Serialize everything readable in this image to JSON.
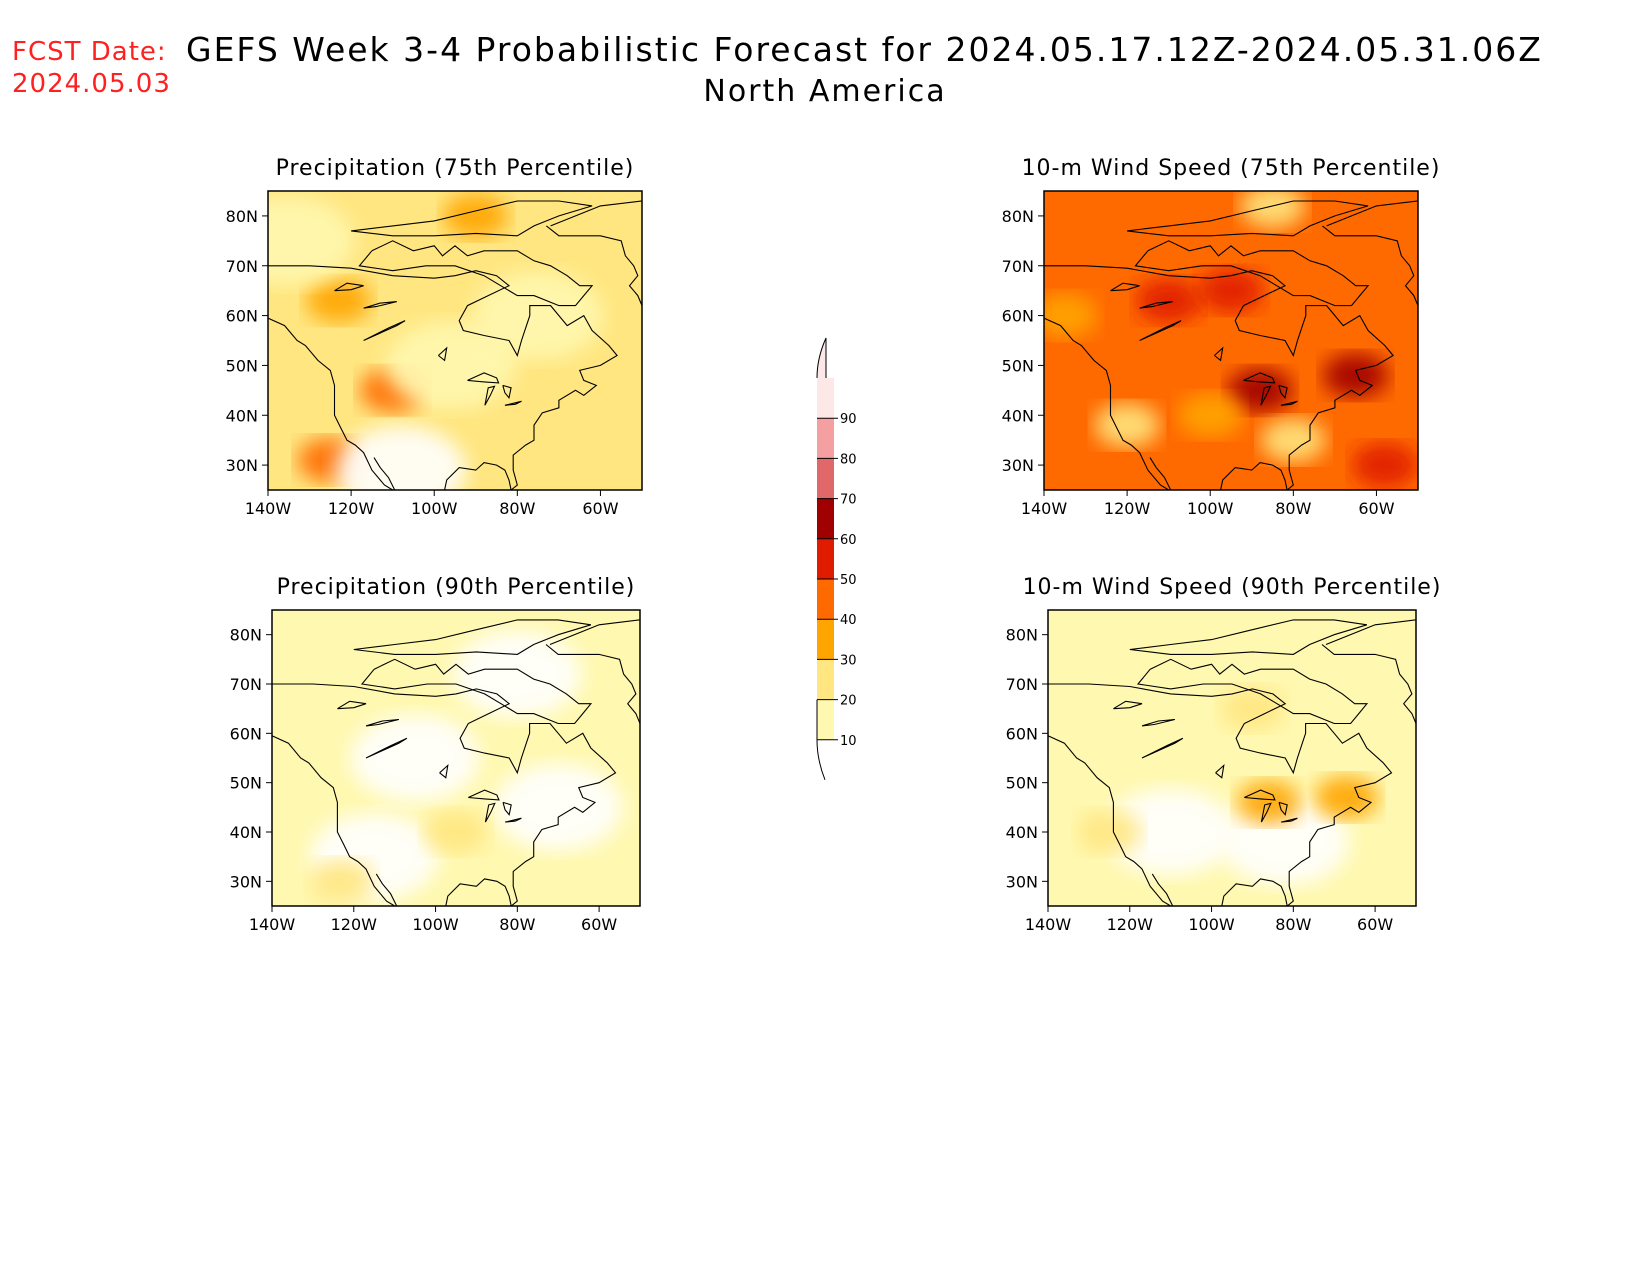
{
  "header": {
    "fcst_label": "FCST Date:",
    "fcst_date": "2024.05.03",
    "title": "GEFS Week 3-4 Probabilistic Forecast for 2024.05.17.12Z-2024.05.31.06Z",
    "region": "North America"
  },
  "palette": {
    "10": "#fff8b0",
    "20": "#ffe680",
    "30": "#ffa500",
    "40": "#ff6a00",
    "50": "#e01c00",
    "60": "#a00000",
    "70": "#e06868",
    "80": "#f4a0a0",
    "90": "#fde8e8"
  },
  "panels": [
    {
      "id": "precip75",
      "title": "Precipitation (75th Percentile)",
      "base_level": 20,
      "blobs": [
        {
          "lon": -125,
          "lat": 31,
          "level": 40
        },
        {
          "lon": -110,
          "lat": 45,
          "level": 40
        },
        {
          "lon": -123,
          "lat": 63,
          "level": 30
        },
        {
          "lon": -90,
          "lat": 80,
          "level": 30
        },
        {
          "lon": -108,
          "lat": 29,
          "level": 0
        },
        {
          "lon": -96,
          "lat": 50,
          "level": 10
        },
        {
          "lon": -75,
          "lat": 60,
          "level": 10
        },
        {
          "lon": -135,
          "lat": 75,
          "level": 10
        }
      ]
    },
    {
      "id": "wind75",
      "title": "10-m Wind Speed (75th Percentile)",
      "base_level": 40,
      "blobs": [
        {
          "lon": -110,
          "lat": 63,
          "level": 50
        },
        {
          "lon": -95,
          "lat": 65,
          "level": 50
        },
        {
          "lon": -88,
          "lat": 45,
          "level": 60
        },
        {
          "lon": -65,
          "lat": 48,
          "level": 60
        },
        {
          "lon": -58,
          "lat": 30,
          "level": 50
        },
        {
          "lon": -120,
          "lat": 38,
          "level": 20
        },
        {
          "lon": -100,
          "lat": 40,
          "level": 30
        },
        {
          "lon": -80,
          "lat": 35,
          "level": 20
        },
        {
          "lon": -85,
          "lat": 82,
          "level": 20
        },
        {
          "lon": -135,
          "lat": 60,
          "level": 30
        }
      ]
    },
    {
      "id": "precip90",
      "title": "Precipitation (90th Percentile)",
      "base_level": 10,
      "blobs": [
        {
          "lon": -105,
          "lat": 55,
          "level": 0
        },
        {
          "lon": -115,
          "lat": 35,
          "level": 0
        },
        {
          "lon": -80,
          "lat": 72,
          "level": 0
        },
        {
          "lon": -70,
          "lat": 45,
          "level": 0
        },
        {
          "lon": -123,
          "lat": 30,
          "level": 20
        },
        {
          "lon": -95,
          "lat": 40,
          "level": 20
        }
      ]
    },
    {
      "id": "wind90",
      "title": "10-m Wind Speed (90th Percentile)",
      "base_level": 10,
      "blobs": [
        {
          "lon": -110,
          "lat": 40,
          "level": 0
        },
        {
          "lon": -82,
          "lat": 38,
          "level": 0
        },
        {
          "lon": -90,
          "lat": 65,
          "level": 20
        },
        {
          "lon": -86,
          "lat": 46,
          "level": 30
        },
        {
          "lon": -67,
          "lat": 47,
          "level": 30
        },
        {
          "lon": -125,
          "lat": 40,
          "level": 20
        }
      ]
    }
  ],
  "axes": {
    "x_ticks": [
      "140W",
      "120W",
      "100W",
      "80W",
      "60W"
    ],
    "y_ticks": [
      "80N",
      "70N",
      "60N",
      "50N",
      "40N",
      "30N"
    ]
  },
  "colorbar": {
    "levels": [
      "10",
      "20",
      "30",
      "40",
      "50",
      "60",
      "70",
      "80",
      "90"
    ]
  }
}
